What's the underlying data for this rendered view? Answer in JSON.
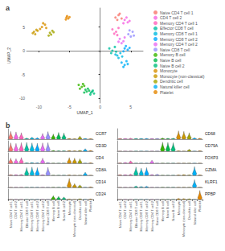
{
  "chart_data": [
    {
      "type": "scatter",
      "title": "a",
      "x_label": "UMAP_1",
      "y_label": "UMAP_2",
      "xlim": [
        -12,
        7
      ],
      "ylim": [
        -11,
        9
      ],
      "xticks": [
        -10,
        -5,
        0,
        5
      ],
      "yticks": [
        -10,
        -5,
        0,
        5
      ],
      "grid": false,
      "legend": "right",
      "series": [
        {
          "name": "Naive CD4 T cell 1",
          "color": "#f8766d",
          "x": [
            2.5,
            3.0,
            3.5,
            2.8,
            3.2
          ],
          "y": [
            7.0,
            7.5,
            6.8,
            6.5,
            7.8
          ]
        },
        {
          "name": "CD4 T cell 2",
          "color": "#f564e3",
          "x": [
            4.0,
            4.5,
            3.8,
            4.3,
            4.8
          ],
          "y": [
            6.5,
            6.0,
            5.8,
            7.0,
            6.3
          ]
        },
        {
          "name": "Memory CD4 T cell 1",
          "color": "#ff62bc",
          "x": [
            2.0,
            2.6,
            3.0,
            2.3,
            2.8
          ],
          "y": [
            4.5,
            4.0,
            4.8,
            3.6,
            3.3
          ]
        },
        {
          "name": "Effector CD8 T cell",
          "color": "#00c1a3",
          "x": [
            1.5,
            2.0,
            2.4,
            1.8,
            2.6
          ],
          "y": [
            0.5,
            0.0,
            0.8,
            -0.5,
            -0.2
          ]
        },
        {
          "name": "Memory CD8 T cell 1",
          "color": "#00bae0",
          "x": [
            2.8,
            3.3,
            3.0,
            3.6,
            2.5
          ],
          "y": [
            -1.0,
            -0.5,
            -1.5,
            -1.2,
            -0.8
          ]
        },
        {
          "name": "Memory CD8 T cell 2",
          "color": "#00a9ff",
          "x": [
            4.0,
            4.5,
            4.2,
            4.8,
            3.8
          ],
          "y": [
            0.5,
            0.2,
            1.0,
            0.6,
            -0.1
          ]
        },
        {
          "name": "Memory CD4 T cell 2",
          "color": "#e76bf3",
          "x": [
            3.2,
            3.8,
            3.5,
            4.0,
            3.0
          ],
          "y": [
            2.5,
            2.0,
            1.6,
            2.8,
            1.9
          ]
        },
        {
          "name": "Naive CD8 T cell",
          "color": "#9590ff",
          "x": [
            4.6,
            5.0,
            5.3,
            4.8,
            5.5
          ],
          "y": [
            3.5,
            3.0,
            4.0,
            4.3,
            3.2
          ]
        },
        {
          "name": "Memory B cell",
          "color": "#39b600",
          "x": [
            -3.5,
            -3.0,
            -2.8,
            -3.3,
            -2.6
          ],
          "y": [
            -7.2,
            -7.6,
            -7.0,
            -8.0,
            -7.4
          ]
        },
        {
          "name": "Naive B cell",
          "color": "#00bb4e",
          "x": [
            -2.4,
            -2.0,
            -2.2,
            -1.8,
            -2.6
          ],
          "y": [
            -8.2,
            -8.0,
            -8.6,
            -8.4,
            -8.8
          ]
        },
        {
          "name": "Naive B cell 2",
          "color": "#00bf7d",
          "x": [
            -1.5,
            -1.2,
            -1.6,
            -1.0,
            -1.3
          ],
          "y": [
            -8.8,
            -8.4,
            -9.2,
            -9.0,
            -8.6
          ]
        },
        {
          "name": "Monocyte",
          "color": "#d89000",
          "x": [
            -9.5,
            -9.0,
            -9.8,
            -8.8,
            -9.3
          ],
          "y": [
            5.0,
            5.5,
            4.6,
            4.8,
            5.8
          ]
        },
        {
          "name": "Monocyte (non-classical)",
          "color": "#c99800",
          "x": [
            -10.8,
            -10.4,
            -11.0,
            -10.6,
            -10.2
          ],
          "y": [
            4.0,
            4.4,
            3.7,
            3.5,
            4.2
          ]
        },
        {
          "name": "Dendritic cell",
          "color": "#a3a500",
          "x": [
            -8.2,
            -7.8,
            -8.0,
            -7.6,
            -8.4
          ],
          "y": [
            3.8,
            4.2,
            3.4,
            3.9,
            3.2
          ]
        },
        {
          "name": "Natural killer cell",
          "color": "#00b0f6",
          "x": [
            3.5,
            4.0,
            4.5,
            3.8,
            4.3
          ],
          "y": [
            -2.5,
            -3.0,
            -2.8,
            -3.4,
            -2.2
          ]
        },
        {
          "name": "Platelet",
          "color": "#e58700",
          "x": [
            -5.5,
            -5.2,
            -5.4,
            -5.0,
            -5.6
          ],
          "y": [
            7.0,
            6.8,
            7.3,
            7.1,
            6.6
          ]
        }
      ]
    },
    {
      "type": "violin",
      "title": "b",
      "ylim": [
        0,
        4
      ],
      "tick_labels": "x",
      "categories": [
        "Naive CD4 T cell 1",
        "CD4 T cell 2",
        "Memory CD4 T cell 1",
        "Effector CD8 T cell",
        "Memory CD8 T cell 1",
        "Memory CD8 T cell 2",
        "Memory CD4 T cell 2",
        "Naive CD8 T cell",
        "Memory B cell",
        "Naive B cell",
        "Naive B cell 2",
        "Monocyte",
        "Monocyte (non-classical)",
        "Dendritic cell",
        "Natural killer cell",
        "Platelet"
      ],
      "colors": [
        "#f8766d",
        "#f564e3",
        "#ff62bc",
        "#00c1a3",
        "#00bae0",
        "#00a9ff",
        "#e76bf3",
        "#9590ff",
        "#39b600",
        "#00bb4e",
        "#00bf7d",
        "#d89000",
        "#c99800",
        "#a3a500",
        "#00b0f6",
        "#e58700"
      ],
      "series": [
        {
          "name": "CCR7",
          "values": [
            3.0,
            2.8,
            2.5,
            0.5,
            0.8,
            0.6,
            2.2,
            2.9,
            2.0,
            2.6,
            2.4,
            0.3,
            0.2,
            1.2,
            0.3,
            0.2
          ]
        },
        {
          "name": "CD3D",
          "values": [
            3.2,
            3.0,
            3.3,
            3.4,
            3.2,
            3.1,
            3.2,
            3.3,
            0.3,
            0.2,
            0.2,
            0.3,
            0.2,
            0.4,
            1.0,
            0.3
          ]
        },
        {
          "name": "CD4",
          "values": [
            2.0,
            1.8,
            2.2,
            0.2,
            0.3,
            0.2,
            2.0,
            0.3,
            0.1,
            0.1,
            0.1,
            2.2,
            2.0,
            1.8,
            0.1,
            0.2
          ]
        },
        {
          "name": "CD8A",
          "values": [
            0.3,
            0.3,
            0.4,
            3.0,
            3.2,
            3.0,
            0.3,
            3.1,
            0.1,
            0.1,
            0.1,
            0.2,
            0.1,
            0.1,
            1.2,
            0.1
          ]
        },
        {
          "name": "CD14",
          "values": [
            0.1,
            0.1,
            0.1,
            0.1,
            0.1,
            0.1,
            0.1,
            0.1,
            0.1,
            0.1,
            0.1,
            3.5,
            1.5,
            1.0,
            0.1,
            0.2
          ]
        },
        {
          "name": "CD24",
          "values": [
            0.1,
            0.1,
            0.1,
            0.1,
            0.1,
            0.1,
            0.1,
            0.1,
            1.5,
            1.2,
            1.0,
            0.2,
            0.1,
            0.3,
            0.1,
            0.2
          ]
        },
        {
          "name": "CD68",
          "values": [
            0.3,
            0.3,
            0.4,
            0.3,
            0.3,
            0.3,
            0.3,
            0.3,
            0.5,
            0.4,
            0.4,
            3.2,
            3.0,
            2.5,
            0.6,
            0.4
          ]
        },
        {
          "name": "CD79A",
          "values": [
            0.1,
            0.1,
            0.1,
            0.1,
            0.1,
            0.1,
            0.1,
            0.1,
            3.5,
            3.4,
            3.3,
            0.2,
            0.1,
            0.8,
            0.1,
            0.2
          ]
        },
        {
          "name": "FOXP3",
          "values": [
            0.2,
            0.4,
            1.0,
            0.1,
            0.1,
            0.1,
            1.2,
            0.1,
            0.1,
            0.1,
            0.1,
            0.1,
            0.1,
            0.1,
            0.1,
            0.1
          ]
        },
        {
          "name": "GZMA",
          "values": [
            0.3,
            0.3,
            0.5,
            3.2,
            2.8,
            3.0,
            0.4,
            0.5,
            0.1,
            0.1,
            0.1,
            0.2,
            0.3,
            0.2,
            3.4,
            0.2
          ]
        },
        {
          "name": "KLRF1",
          "values": [
            0.1,
            0.1,
            0.1,
            0.6,
            0.4,
            0.5,
            0.1,
            0.1,
            0.1,
            0.1,
            0.1,
            0.1,
            0.1,
            0.1,
            3.0,
            0.1
          ]
        },
        {
          "name": "PPBP",
          "values": [
            0.1,
            0.1,
            0.1,
            0.1,
            0.1,
            0.1,
            0.1,
            0.1,
            0.1,
            0.1,
            0.1,
            0.5,
            0.4,
            0.3,
            0.1,
            3.5
          ]
        }
      ]
    }
  ]
}
